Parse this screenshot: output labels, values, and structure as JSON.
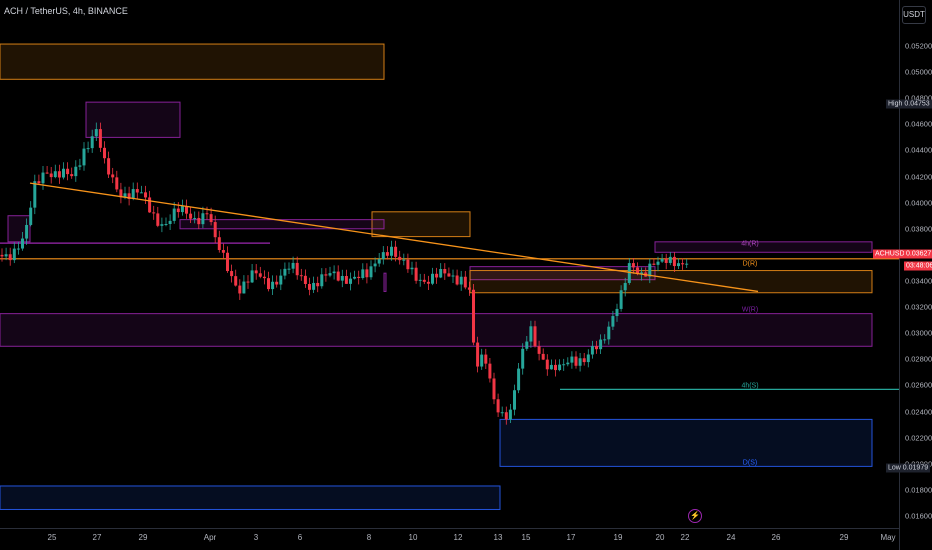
{
  "header": {
    "title": "ACH / TetherUS, 4h, BINANCE",
    "currency_button": "USDT"
  },
  "chart_data": {
    "type": "candlestick",
    "colors": {
      "up": "#26a69a",
      "down": "#f23645",
      "trendline": "#f7931a"
    },
    "y_axis": {
      "range": [
        0.0155,
        0.0545
      ],
      "ticks": [
        "0.05200",
        "0.05000",
        "0.04800",
        "0.04600",
        "0.04400",
        "0.04200",
        "0.04000",
        "0.03800",
        "0.03600",
        "0.03400",
        "0.03200",
        "0.03000",
        "0.02800",
        "0.02600",
        "0.02400",
        "0.02200",
        "0.02000",
        "0.01800",
        "0.01600"
      ]
    },
    "x_axis": {
      "tick_labels": [
        "25",
        "27",
        "29",
        "Apr",
        "3",
        "6",
        "8",
        "10",
        "12",
        "13",
        "15",
        "17",
        "19",
        "20",
        "22",
        "24",
        "26",
        "29",
        "May"
      ]
    },
    "markers": {
      "high": {
        "label": "High",
        "value": "0.04753"
      },
      "low": {
        "label": "Low",
        "value": "0.01979"
      },
      "current": {
        "symbol": "ACHUSDT",
        "value": "0.03627",
        "countdown": "03:48:06"
      }
    },
    "zone_labels": [
      "4h(R)",
      "D(R)",
      "W(R)",
      "4h(S)",
      "D(S)"
    ],
    "zones": [
      {
        "x0": "Mar 21",
        "x1": "Apr 1",
        "y0": 0.04945,
        "y1": 0.05215,
        "color": "#f7931a"
      },
      {
        "x0": "Mar 27",
        "x1": "Mar 29",
        "y0": 0.045,
        "y1": 0.0477,
        "color": "#9c27b0"
      },
      {
        "x0": "Mar 22",
        "x1": "Mar 25",
        "y0": 0.037,
        "y1": 0.039,
        "color": "#9c27b0"
      },
      {
        "x0": "Apr 7",
        "x1": "Apr 10",
        "y0": 0.0374,
        "y1": 0.0393,
        "color": "#f7931a"
      },
      {
        "x0": "Mar 29",
        "x1": "Apr 1",
        "y0": 0.038,
        "y1": 0.0387,
        "color": "#9c27b0"
      },
      {
        "x0": "Apr 1",
        "x1": "Apr 7",
        "y0": 0.0332,
        "y1": 0.0346,
        "color": "#9c27b0"
      },
      {
        "x0": "Apr 12",
        "x1": "Apr 20",
        "y0": 0.0341,
        "y1": 0.0351,
        "color": "#9c27b0"
      },
      {
        "x0": "Apr 12",
        "x1": "Apr 26",
        "y0": 0.0331,
        "y1": 0.0348,
        "color": "#f7931a"
      },
      {
        "x0": "Apr 20",
        "x1": "Apr 26",
        "y0": 0.0362,
        "y1": 0.037,
        "color": "#9c27b0"
      },
      {
        "x0": "Mar 21",
        "x1": "Apr 26",
        "y0": 0.029,
        "y1": 0.0315,
        "color": "#9c27b0"
      },
      {
        "x0": "Apr 13",
        "x1": "Apr 26",
        "y0": 0.0198,
        "y1": 0.0234,
        "color": "#2962ff"
      },
      {
        "x0": "Mar 21",
        "x1": "Apr 13",
        "y0": 0.0165,
        "y1": 0.0183,
        "color": "#2962ff"
      }
    ],
    "trendline": [
      {
        "x": "Mar 25",
        "y": 0.0415
      },
      {
        "x": "Apr 23",
        "y": 0.0332
      }
    ]
  }
}
